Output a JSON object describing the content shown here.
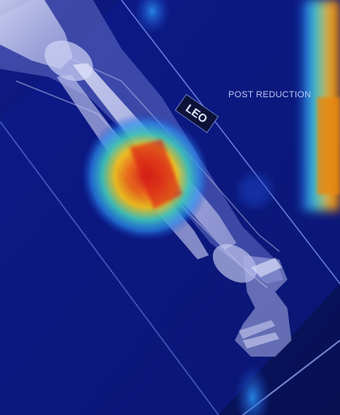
{
  "image": {
    "label_text": "POST REDUCTION",
    "marker_text": "LEO",
    "colors": {
      "background": "#0a1470",
      "bone": "#c9cdf2",
      "heat_hot": "#d81e12",
      "heat_warm": "#f2c01c",
      "heat_cool": "#2a8ff0"
    }
  }
}
